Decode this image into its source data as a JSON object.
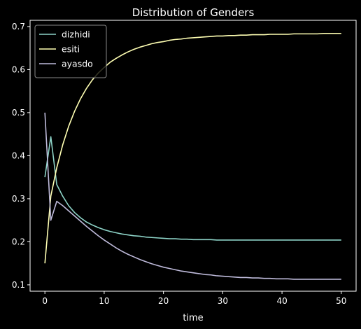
{
  "chart_data": {
    "type": "line",
    "title": "Distribution of Genders",
    "xlabel": "time",
    "ylabel": "",
    "xlim": [
      -2.5,
      52.5
    ],
    "ylim": [
      0.0852,
      0.7145
    ],
    "xticks": [
      0,
      10,
      20,
      30,
      40,
      50
    ],
    "yticks": [
      0.1,
      0.2,
      0.3,
      0.4,
      0.5,
      0.6,
      0.7
    ],
    "grid": false,
    "legend_position": "top-left",
    "colors": {
      "background": "#000000",
      "axes": "#ffffff",
      "text": "#ffffff"
    },
    "x": [
      0,
      1,
      2,
      3,
      4,
      5,
      6,
      7,
      8,
      9,
      10,
      11,
      12,
      13,
      14,
      15,
      16,
      17,
      18,
      19,
      20,
      21,
      22,
      23,
      24,
      25,
      26,
      27,
      28,
      29,
      30,
      31,
      32,
      33,
      34,
      35,
      36,
      37,
      38,
      39,
      40,
      41,
      42,
      43,
      44,
      45,
      46,
      47,
      48,
      49,
      50
    ],
    "series": [
      {
        "name": "dizhidi",
        "color": "#8dd3c7",
        "values": [
          0.35,
          0.444,
          0.333,
          0.306,
          0.284,
          0.268,
          0.256,
          0.246,
          0.239,
          0.233,
          0.228,
          0.224,
          0.221,
          0.218,
          0.216,
          0.214,
          0.213,
          0.211,
          0.21,
          0.209,
          0.208,
          0.207,
          0.207,
          0.206,
          0.206,
          0.205,
          0.205,
          0.205,
          0.205,
          0.204,
          0.204,
          0.204,
          0.204,
          0.204,
          0.204,
          0.204,
          0.204,
          0.204,
          0.204,
          0.204,
          0.204,
          0.204,
          0.204,
          0.204,
          0.204,
          0.204,
          0.204,
          0.204,
          0.204,
          0.204,
          0.204
        ]
      },
      {
        "name": "esiti",
        "color": "#ffffb3",
        "values": [
          0.15,
          0.306,
          0.372,
          0.425,
          0.468,
          0.503,
          0.532,
          0.556,
          0.576,
          0.592,
          0.605,
          0.617,
          0.626,
          0.634,
          0.641,
          0.647,
          0.652,
          0.656,
          0.66,
          0.663,
          0.665,
          0.668,
          0.67,
          0.671,
          0.673,
          0.674,
          0.675,
          0.676,
          0.677,
          0.678,
          0.678,
          0.679,
          0.679,
          0.68,
          0.68,
          0.681,
          0.681,
          0.681,
          0.682,
          0.682,
          0.682,
          0.682,
          0.683,
          0.683,
          0.683,
          0.683,
          0.683,
          0.684,
          0.684,
          0.684,
          0.684
        ]
      },
      {
        "name": "ayasdo",
        "color": "#bebada",
        "values": [
          0.5,
          0.25,
          0.294,
          0.284,
          0.272,
          0.26,
          0.248,
          0.236,
          0.225,
          0.214,
          0.204,
          0.195,
          0.186,
          0.178,
          0.171,
          0.165,
          0.159,
          0.154,
          0.149,
          0.145,
          0.141,
          0.138,
          0.135,
          0.132,
          0.13,
          0.128,
          0.126,
          0.124,
          0.123,
          0.121,
          0.12,
          0.119,
          0.118,
          0.117,
          0.117,
          0.116,
          0.116,
          0.115,
          0.115,
          0.114,
          0.114,
          0.114,
          0.113,
          0.113,
          0.113,
          0.113,
          0.113,
          0.113,
          0.113,
          0.113,
          0.113
        ]
      }
    ]
  }
}
